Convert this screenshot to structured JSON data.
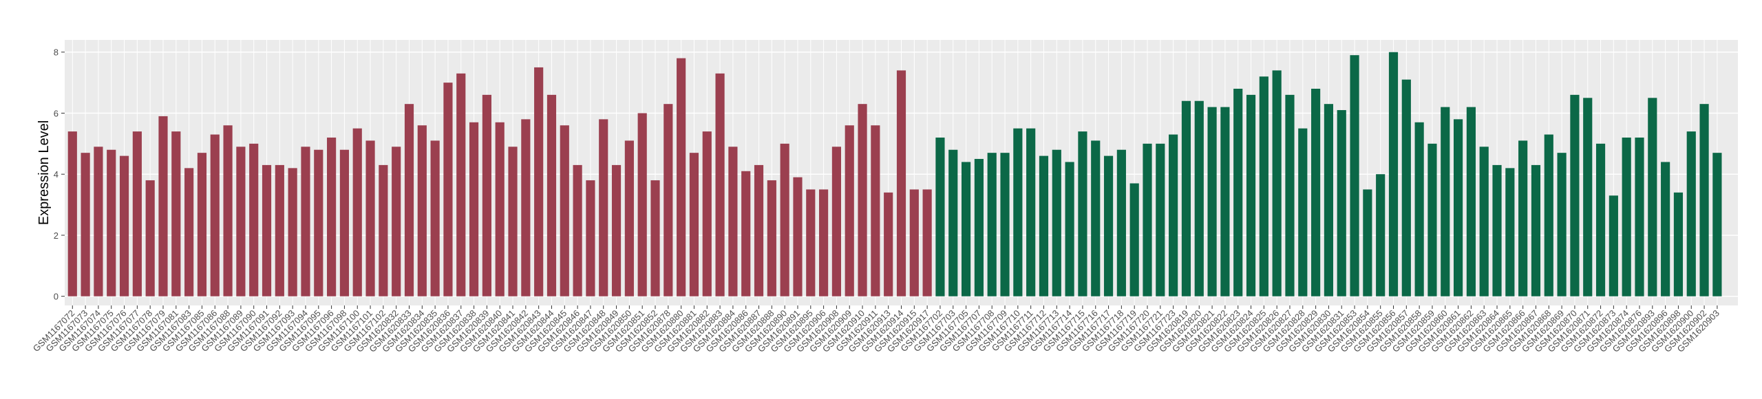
{
  "chart_data": {
    "type": "bar",
    "y_label": "Expression Level",
    "categories": [
      "GSM1167072",
      "GSM1167073",
      "GSM1167074",
      "GSM1167075",
      "GSM1167076",
      "GSM1167077",
      "GSM1167078",
      "GSM1167079",
      "GSM1167081",
      "GSM1167083",
      "GSM1167085",
      "GSM1167086",
      "GSM1167088",
      "GSM1167089",
      "GSM1167090",
      "GSM1167091",
      "GSM1167092",
      "GSM1167093",
      "GSM1167094",
      "GSM1167095",
      "GSM1167096",
      "GSM1167098",
      "GSM1167100",
      "GSM1167101",
      "GSM1167102",
      "GSM1620832",
      "GSM1620833",
      "GSM1620834",
      "GSM1620835",
      "GSM1620836",
      "GSM1620837",
      "GSM1620838",
      "GSM1620839",
      "GSM1620840",
      "GSM1620841",
      "GSM1620842",
      "GSM1620843",
      "GSM1620844",
      "GSM1620845",
      "GSM1620846",
      "GSM1620847",
      "GSM1620848",
      "GSM1620849",
      "GSM1620850",
      "GSM1620851",
      "GSM1620852",
      "GSM1620878",
      "GSM1620880",
      "GSM1620881",
      "GSM1620882",
      "GSM1620883",
      "GSM1620884",
      "GSM1620886",
      "GSM1620887",
      "GSM1620888",
      "GSM1620890",
      "GSM1620891",
      "GSM1620895",
      "GSM1620906",
      "GSM1620908",
      "GSM1620909",
      "GSM1620910",
      "GSM1620911",
      "GSM1620913",
      "GSM1620914",
      "GSM1620915",
      "GSM1620917",
      "GSM1167702",
      "GSM1167703",
      "GSM1167705",
      "GSM1167707",
      "GSM1167708",
      "GSM1167709",
      "GSM1167710",
      "GSM1167711",
      "GSM1167712",
      "GSM1167713",
      "GSM1167714",
      "GSM1167715",
      "GSM1167716",
      "GSM1167717",
      "GSM1167718",
      "GSM1167719",
      "GSM1167720",
      "GSM1167721",
      "GSM1167723",
      "GSM1620819",
      "GSM1620820",
      "GSM1620821",
      "GSM1620822",
      "GSM1620823",
      "GSM1620824",
      "GSM1620825",
      "GSM1620826",
      "GSM1620827",
      "GSM1620828",
      "GSM1620829",
      "GSM1620830",
      "GSM1620831",
      "GSM1620853",
      "GSM1620854",
      "GSM1620855",
      "GSM1620856",
      "GSM1620857",
      "GSM1620858",
      "GSM1620859",
      "GSM1620860",
      "GSM1620861",
      "GSM1620862",
      "GSM1620863",
      "GSM1620864",
      "GSM1620865",
      "GSM1620866",
      "GSM1620867",
      "GSM1620868",
      "GSM1620869",
      "GSM1620870",
      "GSM1620871",
      "GSM1620872",
      "GSM1620873",
      "GSM1620874",
      "GSM1620876",
      "GSM1620893",
      "GSM1620896",
      "GSM1620898",
      "GSM1620900",
      "GSM1620902",
      "GSM1620903"
    ],
    "series": [
      {
        "color": "#9b3f4f",
        "values": [
          5.4,
          4.7,
          4.9,
          4.8,
          4.6,
          5.4,
          3.8,
          5.9,
          5.4,
          4.2,
          4.7,
          5.3,
          5.6,
          4.9,
          5.0,
          4.3,
          4.3,
          4.2,
          4.9,
          4.8,
          5.2,
          4.8,
          5.5,
          5.1,
          4.3,
          4.9,
          6.3,
          5.6,
          5.1,
          7.0,
          7.3,
          5.7,
          6.6,
          5.7,
          4.9,
          5.8,
          7.5,
          6.6,
          5.6,
          4.3,
          3.8,
          5.8,
          4.3,
          5.1,
          6.0,
          3.8,
          6.3,
          7.8,
          4.7,
          5.4,
          7.3,
          4.9,
          4.1,
          4.3,
          3.8,
          5.0,
          3.9,
          3.5,
          3.5,
          4.9,
          5.6,
          6.3,
          5.6,
          3.4,
          7.4,
          3.5,
          3.5,
          null,
          null,
          null,
          null,
          null,
          null,
          null,
          null,
          null,
          null,
          null,
          null,
          null,
          null,
          null,
          null,
          null,
          null,
          null,
          null,
          null,
          null,
          null,
          null,
          null,
          null,
          null,
          null,
          null,
          null,
          null,
          null,
          null,
          null,
          null,
          null,
          null,
          null,
          null,
          null,
          null,
          null,
          null,
          null,
          null,
          null,
          null,
          null,
          null,
          null,
          null,
          null,
          null,
          null,
          null,
          null,
          null,
          null,
          null,
          null,
          null
        ]
      },
      {
        "color": "#0b6847",
        "values": [
          null,
          null,
          null,
          null,
          null,
          null,
          null,
          null,
          null,
          null,
          null,
          null,
          null,
          null,
          null,
          null,
          null,
          null,
          null,
          null,
          null,
          null,
          null,
          null,
          null,
          null,
          null,
          null,
          null,
          null,
          null,
          null,
          null,
          null,
          null,
          null,
          null,
          null,
          null,
          null,
          null,
          null,
          null,
          null,
          null,
          null,
          null,
          null,
          null,
          null,
          null,
          null,
          null,
          null,
          null,
          null,
          null,
          null,
          null,
          null,
          null,
          null,
          null,
          null,
          null,
          null,
          null,
          5.2,
          4.8,
          4.4,
          4.5,
          4.7,
          4.7,
          5.5,
          5.5,
          4.6,
          4.8,
          4.4,
          5.4,
          5.1,
          4.6,
          4.8,
          3.7,
          5.0,
          5.0,
          5.3,
          6.4,
          6.4,
          6.2,
          6.2,
          6.8,
          6.6,
          7.2,
          7.4,
          6.6,
          5.5,
          6.8,
          6.3,
          6.1,
          7.9,
          3.5,
          4.0,
          8.0,
          7.1,
          5.7,
          5.0,
          6.2,
          5.8,
          6.2,
          4.9,
          4.3,
          4.2,
          5.1,
          4.3,
          5.3,
          4.7,
          6.6,
          6.5,
          5.0,
          3.3,
          5.2,
          5.2,
          6.5,
          4.4,
          3.4,
          5.4,
          6.3,
          4.7
        ]
      }
    ],
    "ylim": [
      -0.3,
      8.4
    ],
    "yticks": [
      0,
      2,
      4,
      6,
      8
    ],
    "grid": true
  }
}
